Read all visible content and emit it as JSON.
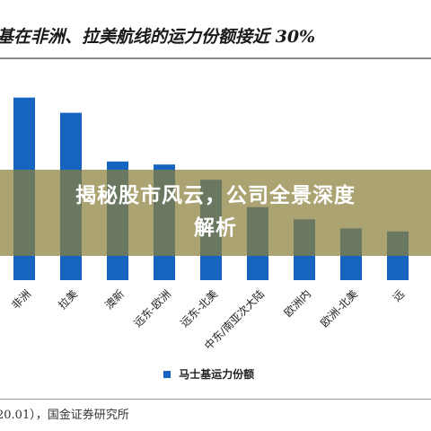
{
  "title": "基在非洲、拉美航线的运力份额接近 30%",
  "banner": {
    "line1": "揭秘股市风云，公司全景深度",
    "line2": "解析"
  },
  "source": "20.01），国金证券研究所",
  "colors": {
    "bar": "#1565c0",
    "overlay": "#8c803c"
  },
  "chart_data": {
    "type": "bar",
    "categories": [
      "非洲",
      "拉美",
      "澳新",
      "远东-欧洲",
      "远东-北美",
      "中东/南亚次大陆",
      "欧洲内",
      "欧洲-北美",
      "远"
    ],
    "series": [
      {
        "name": "马士基运力份额",
        "values": [
          30,
          27.5,
          19.5,
          19,
          16.5,
          12,
          10,
          8.5,
          8
        ]
      }
    ],
    "ylim": [
      0,
      36
    ],
    "grid": false,
    "legend": "bottom-center"
  }
}
